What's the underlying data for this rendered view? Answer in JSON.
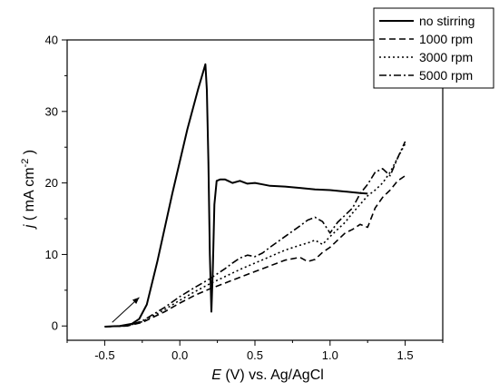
{
  "chart_data": {
    "type": "line",
    "xlabel": {
      "italic": "E",
      "rest": " (V) vs. Ag/AgCl"
    },
    "ylabel": {
      "italic": "j",
      "rest": " ( mA cm",
      "sup": "-2",
      "close": " )"
    },
    "xlim": [
      -0.75,
      1.75
    ],
    "ylim": [
      -2,
      40
    ],
    "x_ticks": [
      -0.5,
      0.0,
      0.5,
      1.0,
      1.5
    ],
    "x_tick_labels": [
      "-0.5",
      "0.0",
      "0.5",
      "1.0",
      "1.5"
    ],
    "y_ticks": [
      0,
      10,
      20,
      30,
      40
    ],
    "y_tick_labels": [
      "0",
      "10",
      "20",
      "30",
      "40"
    ],
    "grid": false,
    "legend_position": "top-right",
    "arrow": {
      "from": [
        -0.45,
        0.5
      ],
      "to": [
        -0.27,
        4.0
      ]
    },
    "series": [
      {
        "name": "no stirring",
        "dash": "solid",
        "color": "#000000",
        "x": [
          -0.5,
          -0.4,
          -0.32,
          -0.27,
          -0.22,
          -0.15,
          -0.05,
          0.05,
          0.12,
          0.17,
          0.18,
          0.19,
          0.2,
          0.21,
          0.22,
          0.23,
          0.245,
          0.27,
          0.3,
          0.35,
          0.4,
          0.45,
          0.5,
          0.55,
          0.6,
          0.7,
          0.8,
          0.9,
          1.0,
          1.1,
          1.2,
          1.25
        ],
        "y": [
          -0.1,
          0.0,
          0.3,
          1.0,
          3.0,
          9.0,
          18.5,
          27.5,
          33.0,
          36.6,
          33.0,
          23.0,
          10.0,
          2.0,
          8.0,
          17.0,
          20.3,
          20.5,
          20.5,
          20.0,
          20.3,
          19.9,
          20.0,
          19.8,
          19.6,
          19.5,
          19.3,
          19.1,
          19.0,
          18.8,
          18.6,
          18.5
        ]
      },
      {
        "name": "1000 rpm",
        "dash": "dashed",
        "color": "#000000",
        "x": [
          -0.5,
          -0.35,
          -0.25,
          -0.1,
          0.0,
          0.1,
          0.2,
          0.3,
          0.4,
          0.5,
          0.6,
          0.7,
          0.8,
          0.85,
          0.9,
          0.95,
          1.0,
          1.05,
          1.1,
          1.15,
          1.2,
          1.25,
          1.3,
          1.35,
          1.4,
          1.45,
          1.5
        ],
        "y": [
          -0.1,
          0.0,
          0.5,
          2.0,
          3.2,
          4.3,
          5.2,
          6.0,
          6.8,
          7.6,
          8.4,
          9.2,
          9.6,
          9.0,
          9.3,
          10.3,
          11.0,
          12.0,
          13.0,
          13.5,
          14.2,
          13.8,
          16.5,
          18.0,
          19.0,
          20.3,
          21.0
        ]
      },
      {
        "name": "3000 rpm",
        "dash": "dotted",
        "color": "#000000",
        "x": [
          -0.5,
          -0.35,
          -0.25,
          -0.1,
          0.0,
          0.1,
          0.2,
          0.3,
          0.4,
          0.5,
          0.6,
          0.7,
          0.8,
          0.85,
          0.9,
          0.95,
          1.0,
          1.05,
          1.1,
          1.15,
          1.2,
          1.25,
          1.3,
          1.35,
          1.4,
          1.45,
          1.5
        ],
        "y": [
          -0.1,
          0.0,
          0.6,
          2.3,
          3.6,
          4.8,
          5.9,
          6.9,
          7.9,
          8.8,
          9.7,
          10.6,
          11.3,
          11.6,
          12.0,
          11.4,
          12.5,
          13.5,
          14.5,
          15.8,
          17.0,
          18.2,
          19.0,
          20.0,
          21.5,
          23.5,
          25.5
        ]
      },
      {
        "name": "5000 rpm",
        "dash": "dashdot",
        "color": "#000000",
        "x": [
          -0.5,
          -0.35,
          -0.25,
          -0.1,
          0.0,
          0.1,
          0.2,
          0.3,
          0.35,
          0.4,
          0.45,
          0.5,
          0.55,
          0.6,
          0.7,
          0.8,
          0.85,
          0.9,
          0.95,
          1.0,
          1.05,
          1.1,
          1.15,
          1.2,
          1.25,
          1.3,
          1.35,
          1.4,
          1.45,
          1.5
        ],
        "y": [
          -0.1,
          0.0,
          0.7,
          2.6,
          4.1,
          5.4,
          6.6,
          8.0,
          8.8,
          9.5,
          9.9,
          9.7,
          10.2,
          11.0,
          12.5,
          14.0,
          14.8,
          15.2,
          14.6,
          13.0,
          14.5,
          15.5,
          16.5,
          18.5,
          19.8,
          21.5,
          22.0,
          21.0,
          23.5,
          25.8
        ]
      }
    ]
  }
}
